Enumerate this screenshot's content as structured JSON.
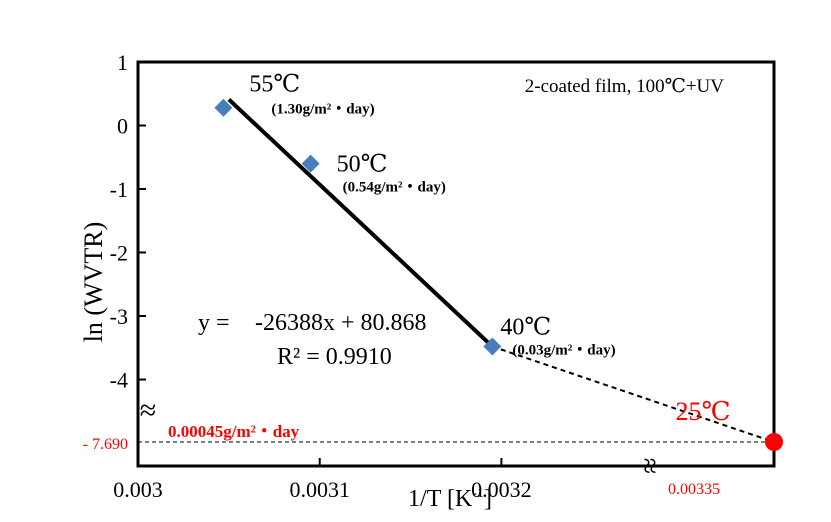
{
  "chart_data": {
    "type": "scatter",
    "title": "",
    "xlabel": "1/T [K",
    "xlabel_sup": "-1",
    "xlabel_end": "]",
    "ylabel": "ln (WVTR)",
    "xlim": [
      0.003,
      0.00335
    ],
    "ylim": [
      -7.69,
      1
    ],
    "x_ticks": [
      {
        "value": 0.003,
        "label": "0.003"
      },
      {
        "value": 0.0031,
        "label": "0.0031"
      },
      {
        "value": 0.0032,
        "label": "0.0032"
      }
    ],
    "y_ticks": [
      {
        "value": 1,
        "label": "1"
      },
      {
        "value": 0,
        "label": "0"
      },
      {
        "value": -1,
        "label": "-1"
      },
      {
        "value": -2,
        "label": "-2"
      },
      {
        "value": -3,
        "label": "-3"
      },
      {
        "value": -4,
        "label": "-4"
      }
    ],
    "annotation_box": "2-coated film, 100℃+UV",
    "series": [
      {
        "points": [
          {
            "x": 0.003047,
            "y": 0.28,
            "temp": "55℃",
            "wvtr": "(1.30g/m²・day)"
          },
          {
            "x": 0.003095,
            "y": -0.6,
            "temp": "50℃",
            "wvtr": "(0.54g/m²・day)"
          },
          {
            "x": 0.003195,
            "y": -3.48,
            "temp": "40℃",
            "wvtr": "(0.03g/m²・day)"
          }
        ],
        "color": "#4a7ebb",
        "marker": "diamond"
      }
    ],
    "fit": {
      "equation_prefix": "y =",
      "equation_body": "-26388x + 80.868",
      "r2": "R² = 0.9910",
      "x_start": 0.00305,
      "x_solid_end": 0.003195,
      "x_dash_end": 0.00335,
      "y_start": 0.41,
      "y_solid_end": -3.48,
      "y_dash_end": -7.69
    },
    "extrapolated": {
      "x": 0.00335,
      "y": -7.69,
      "temp": "25℃",
      "wvtr": "0.00045g/m²・day",
      "y_label": "- 7.690",
      "x_label": "0.00335",
      "color": "#ff0000"
    },
    "axis_break_symbol": "≈"
  }
}
